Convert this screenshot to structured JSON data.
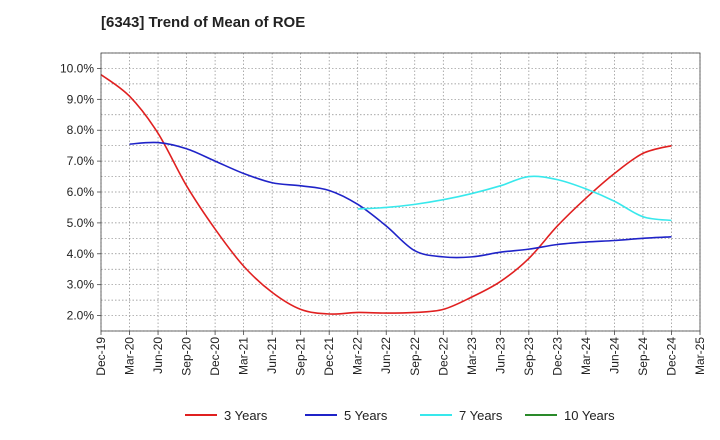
{
  "chart_data": {
    "type": "line",
    "title": "[6343]  Trend of Mean of ROE",
    "xlabel": "",
    "ylabel": "",
    "x_ticks": [
      "Dec-19",
      "Mar-20",
      "Jun-20",
      "Sep-20",
      "Dec-20",
      "Mar-21",
      "Jun-21",
      "Sep-21",
      "Dec-21",
      "Mar-22",
      "Jun-22",
      "Sep-22",
      "Dec-22",
      "Mar-23",
      "Jun-23",
      "Sep-23",
      "Dec-23",
      "Mar-24",
      "Jun-24",
      "Sep-24",
      "Dec-24",
      "Mar-25"
    ],
    "y_ticks": [
      "2.0%",
      "3.0%",
      "4.0%",
      "5.0%",
      "6.0%",
      "7.0%",
      "8.0%",
      "9.0%",
      "10.0%"
    ],
    "ylim": [
      1.5,
      10.5
    ],
    "grid": true,
    "legend_position": "bottom",
    "series": [
      {
        "name": "3 Years",
        "color": "#e02020",
        "values": [
          9.8,
          9.1,
          7.9,
          6.2,
          4.8,
          3.6,
          2.75,
          2.2,
          2.05,
          2.1,
          2.08,
          2.1,
          2.2,
          2.6,
          3.1,
          3.85,
          4.9,
          5.8,
          6.6,
          7.25,
          7.5
        ]
      },
      {
        "name": "5 Years",
        "color": "#1f23c8",
        "values": [
          null,
          7.55,
          7.6,
          7.4,
          7.0,
          6.6,
          6.3,
          6.2,
          6.05,
          5.6,
          4.9,
          4.1,
          3.9,
          3.9,
          4.05,
          4.15,
          4.3,
          4.38,
          4.43,
          4.5,
          4.55
        ]
      },
      {
        "name": "7 Years",
        "color": "#38e8ec",
        "values": [
          null,
          null,
          null,
          null,
          null,
          null,
          null,
          null,
          null,
          5.45,
          5.5,
          5.6,
          5.75,
          5.95,
          6.2,
          6.5,
          6.4,
          6.1,
          5.7,
          5.2,
          5.08
        ]
      },
      {
        "name": "10 Years",
        "color": "#2a8a2a",
        "values": []
      }
    ]
  }
}
